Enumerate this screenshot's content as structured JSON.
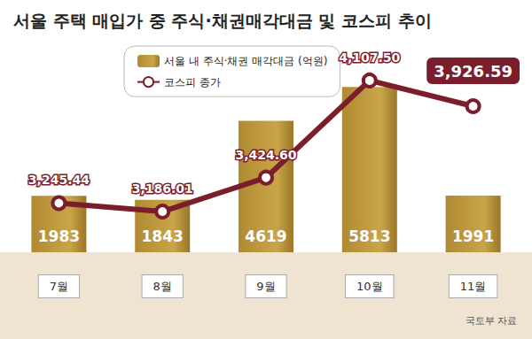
{
  "chart_data": {
    "type": "bar",
    "title": "서울 주택 매입가 중 주식·채권매각대금 및 코스피 추이",
    "categories": [
      "7월",
      "8월",
      "9월",
      "10월",
      "11월"
    ],
    "series": [
      {
        "name": "서울 내 주식·채권 매각대금 (억원)",
        "type": "bar",
        "color": "#b08a32",
        "axis": "y",
        "values": [
          1983,
          1843,
          4619,
          5813,
          1991
        ]
      },
      {
        "name": "코스피 종가",
        "type": "line",
        "color": "#7b1e2c",
        "axis": "y2",
        "marker": "circle",
        "values": [
          3245.44,
          3186.01,
          3424.6,
          4107.5,
          3926.59
        ],
        "value_labels": [
          "3,245.44",
          "3,186.01",
          "3,424.60",
          "4,107.50",
          "3,926.59"
        ]
      }
    ],
    "ylim": [
      0,
      7000
    ],
    "yticks": [
      0,
      7000
    ],
    "y2lim": [
      2900,
      4300
    ],
    "y2ticks": [
      2900,
      4300
    ],
    "data_labels": true,
    "tick_labels": "x",
    "grid": false,
    "legend": "top-left",
    "annotations": [
      "국토부 자료"
    ]
  }
}
